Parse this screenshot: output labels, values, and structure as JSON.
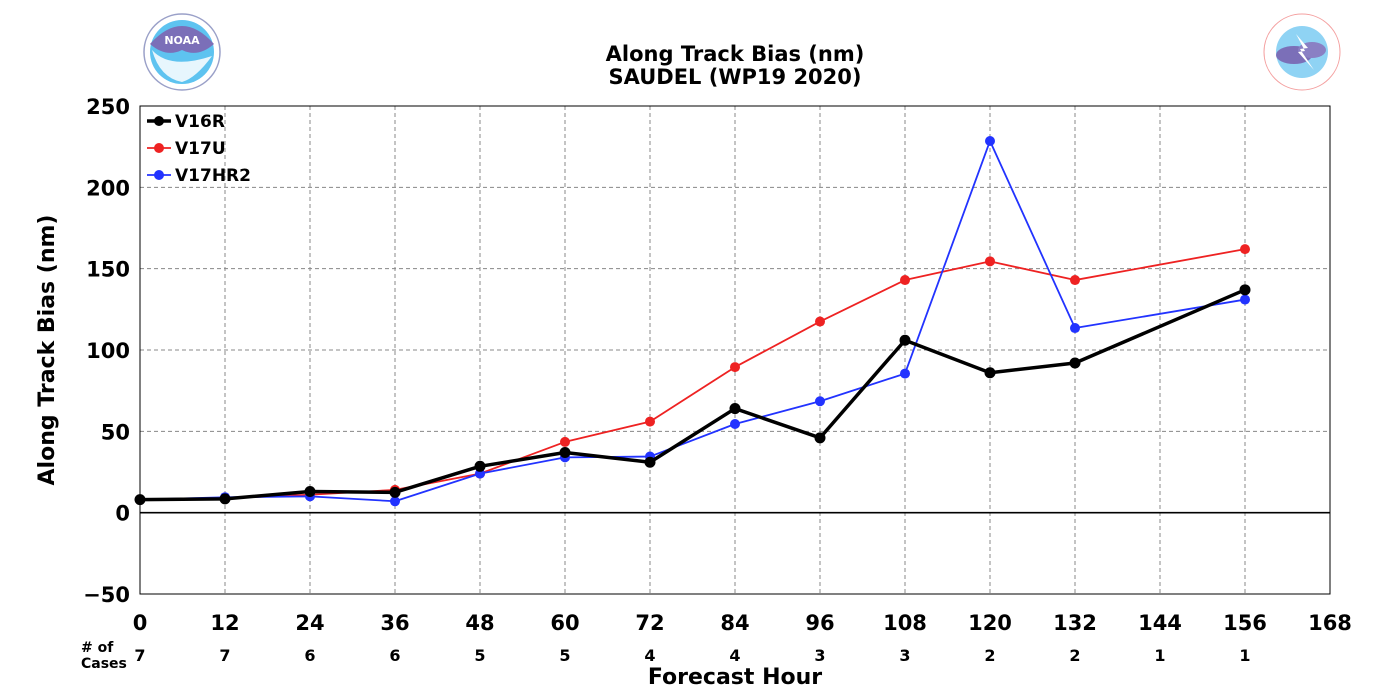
{
  "chart_data": {
    "type": "line",
    "title": "Along Track Bias (nm)",
    "subtitle": "SAUDEL (WP19 2020)",
    "xlabel": "Forecast Hour",
    "ylabel": "Along Track Bias (nm)",
    "xlim": [
      0,
      168
    ],
    "ylim": [
      -50,
      250
    ],
    "x_ticks": [
      "0",
      "12",
      "24",
      "36",
      "48",
      "60",
      "72",
      "84",
      "96",
      "108",
      "120",
      "132",
      "144",
      "156",
      "168"
    ],
    "y_ticks": [
      "250",
      "200",
      "150",
      "100",
      "50",
      "0",
      "−50"
    ],
    "grid": true,
    "legend_position": "top-left",
    "cases_label": [
      "# of",
      "Cases"
    ],
    "cases": [
      {
        "x": 0,
        "n": "7"
      },
      {
        "x": 12,
        "n": "7"
      },
      {
        "x": 24,
        "n": "6"
      },
      {
        "x": 36,
        "n": "6"
      },
      {
        "x": 48,
        "n": "5"
      },
      {
        "x": 60,
        "n": "5"
      },
      {
        "x": 72,
        "n": "4"
      },
      {
        "x": 84,
        "n": "4"
      },
      {
        "x": 96,
        "n": "3"
      },
      {
        "x": 108,
        "n": "3"
      },
      {
        "x": 120,
        "n": "2"
      },
      {
        "x": 132,
        "n": "2"
      },
      {
        "x": 144,
        "n": "1"
      },
      {
        "x": 156,
        "n": "1"
      }
    ],
    "series": [
      {
        "name": "V16R",
        "color": "#000000",
        "x": [
          0,
          12,
          24,
          36,
          48,
          60,
          72,
          84,
          96,
          108,
          120,
          132,
          156
        ],
        "values": [
          8,
          8.5,
          13,
          12.5,
          28.5,
          37,
          31,
          64,
          46,
          106,
          86,
          92,
          137
        ]
      },
      {
        "name": "V17U",
        "color": "#ee2222",
        "x": [
          0,
          12,
          24,
          36,
          48,
          60,
          72,
          84,
          96,
          108,
          120,
          132,
          156
        ],
        "values": [
          8,
          9,
          11,
          14,
          24,
          43.5,
          56,
          89.5,
          117.5,
          143,
          154.5,
          143,
          162
        ]
      },
      {
        "name": "V17HR2",
        "color": "#2233ff",
        "x": [
          0,
          12,
          24,
          36,
          48,
          60,
          72,
          84,
          96,
          108,
          120,
          132,
          156
        ],
        "values": [
          8,
          9.5,
          10,
          7,
          24,
          34,
          34.5,
          54.5,
          68.5,
          85.5,
          228.5,
          113.5,
          131
        ]
      }
    ]
  },
  "logos": {
    "left_text": "NOAA",
    "left_ring_text": "NATIONAL OCEANIC AND ATMOSPHERIC ADMINISTRATION · U.S. DEPARTMENT OF COMMERCE",
    "left_icon": "noaa-logo",
    "right_ring_text": "NATIONAL WEATHER SERVICE",
    "right_icon": "nws-logo"
  }
}
